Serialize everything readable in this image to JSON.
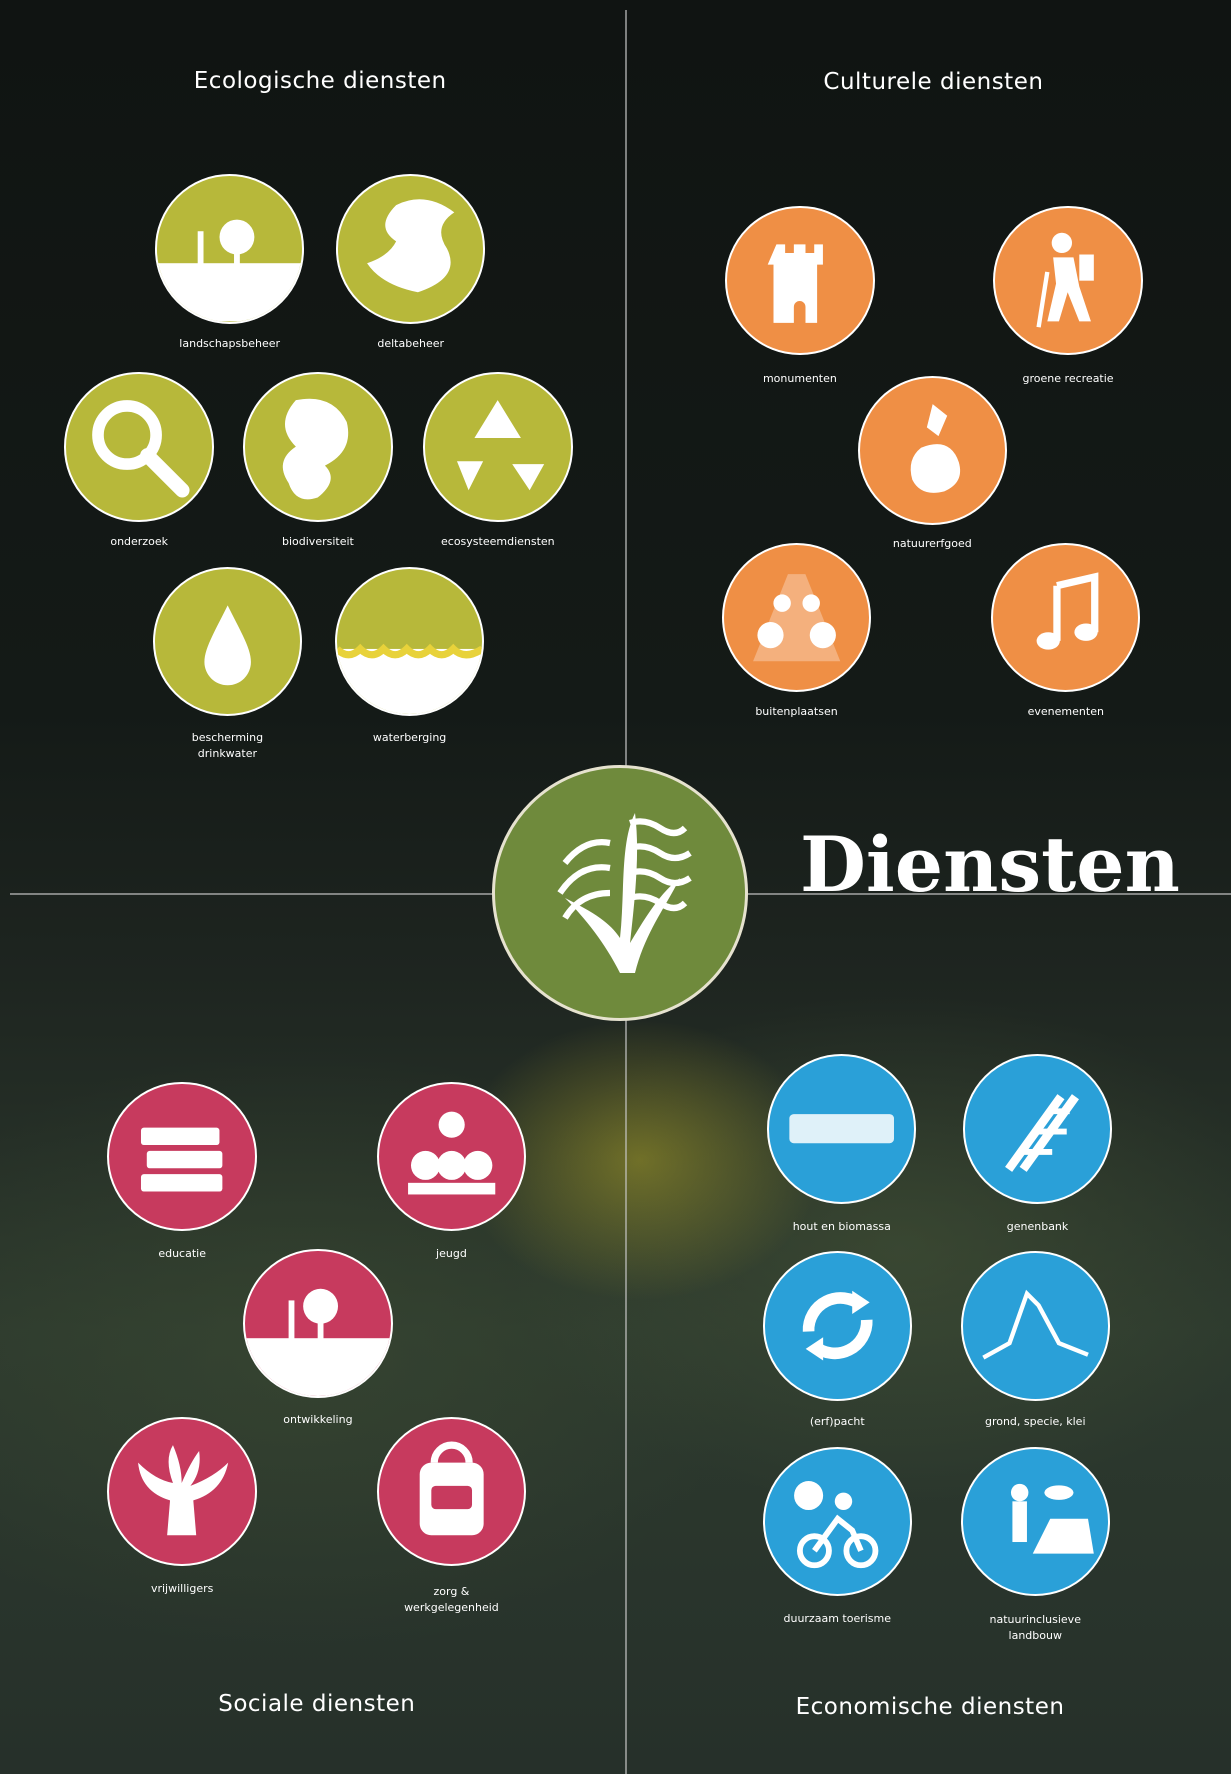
{
  "title": "Diensten",
  "quadrants": [
    {
      "title": "Ecologische diensten",
      "items": [
        "landschapsbeheer",
        "deltabeheer",
        "onderzoek",
        "biodiversiteit",
        "ecosysteemdiensten",
        "bescherming drinkwater",
        "waterberging"
      ]
    },
    {
      "title": "Culturele diensten",
      "items": [
        "monumenten",
        "groene recreatie",
        "natuurerfgoed",
        "buitenplaatsen",
        "evenementen"
      ]
    },
    {
      "title": "Sociale diensten",
      "items": [
        "educatie",
        "jeugd",
        "ontwikkeling",
        "vrijwilligers",
        "zorg & werkgelegenheid"
      ]
    },
    {
      "title": "Economische diensten",
      "items": [
        "hout en biomassa",
        "genenbank",
        "(erf)pacht",
        "grond, specie, klei",
        "duurzaam toerisme",
        "natuurinclusieve landbouw"
      ]
    }
  ]
}
